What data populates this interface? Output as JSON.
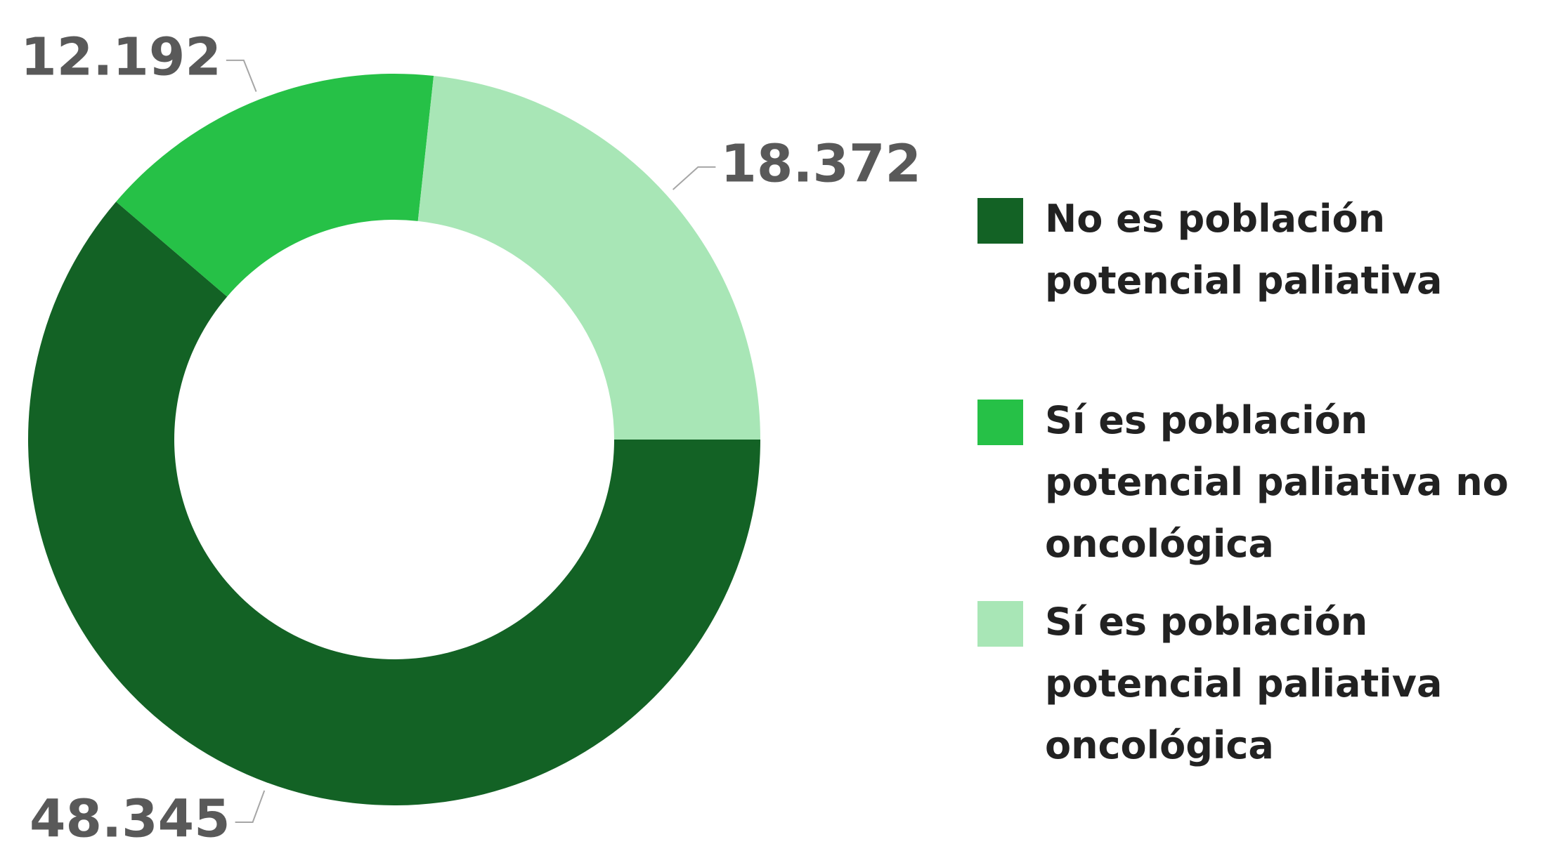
{
  "chart_data": {
    "type": "donut",
    "categories": [
      "No es población potencial paliativa",
      "Sí es población potencial paliativa no oncológica",
      "Sí es población potencial paliativa oncológica"
    ],
    "values": [
      48345,
      12192,
      18372
    ],
    "value_labels": [
      "48.345",
      "12.192",
      "18.372"
    ],
    "colors": [
      "#136225",
      "#26c147",
      "#a8e6b6"
    ]
  }
}
